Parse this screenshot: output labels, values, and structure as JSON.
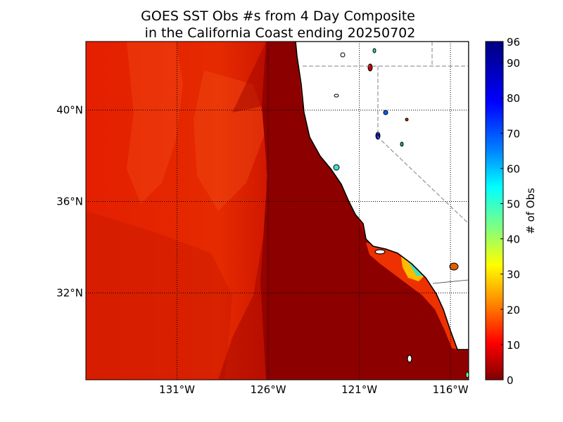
{
  "chart_data": {
    "type": "heatmap",
    "title_line1": "GOES SST Obs #s from 4 Day Composite",
    "title_line2": " in the California Coast ending 20250702",
    "x_tick_labels": [
      "131°W",
      "126°W",
      "121°W",
      "116°W"
    ],
    "x_ticks": [
      -131,
      -126,
      -121,
      -116
    ],
    "y_tick_labels": [
      "40°N",
      "36°N",
      "32°N"
    ],
    "y_ticks": [
      40,
      36,
      32
    ],
    "xlim": [
      -136,
      -115
    ],
    "ylim": [
      28.2,
      43.0
    ],
    "colorbar": {
      "label": "# of Obs",
      "min": 0,
      "max": 96,
      "ticks": [
        0,
        10,
        20,
        30,
        40,
        50,
        60,
        70,
        80,
        90,
        96
      ],
      "tick_labels": [
        "0",
        "10",
        "20",
        "30",
        "40",
        "50",
        "60",
        "70",
        "80",
        "90",
        "96"
      ],
      "colormap": "jet"
    },
    "grid": true,
    "colors": {
      "ocean_far_offshore": "#dd1500",
      "ocean_nearshore": "#8c0000",
      "land": "#ffffff",
      "coastline": "#000000"
    }
  }
}
